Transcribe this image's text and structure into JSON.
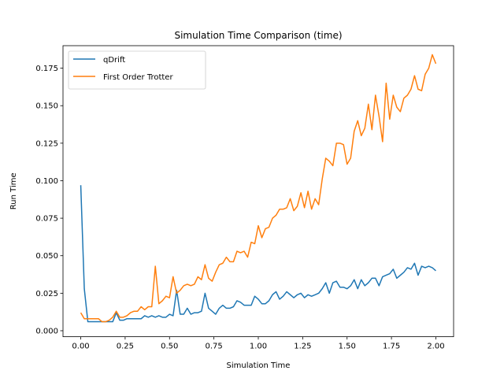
{
  "chart_data": {
    "type": "line",
    "title": "Simulation Time Comparison (time)",
    "xlabel": "Simulation Time",
    "ylabel": "Run Time",
    "xlim": [
      -0.1,
      2.1
    ],
    "ylim": [
      -0.004,
      0.19
    ],
    "xticks": [
      0.0,
      0.25,
      0.5,
      0.75,
      1.0,
      1.25,
      1.5,
      1.75,
      2.0
    ],
    "xtick_labels": [
      "0.00",
      "0.25",
      "0.50",
      "0.75",
      "1.00",
      "1.25",
      "1.50",
      "1.75",
      "2.00"
    ],
    "yticks": [
      0.0,
      0.025,
      0.05,
      0.075,
      0.1,
      0.125,
      0.15,
      0.175
    ],
    "ytick_labels": [
      "0.000",
      "0.025",
      "0.050",
      "0.075",
      "0.100",
      "0.125",
      "0.150",
      "0.175"
    ],
    "grid": false,
    "legend_position": "top-left",
    "x": [
      0.0,
      0.02,
      0.04,
      0.06,
      0.08,
      0.1,
      0.12,
      0.14,
      0.16,
      0.18,
      0.2,
      0.22,
      0.24,
      0.26,
      0.28,
      0.3,
      0.32,
      0.34,
      0.36,
      0.38,
      0.4,
      0.42,
      0.44,
      0.46,
      0.48,
      0.5,
      0.52,
      0.54,
      0.56,
      0.58,
      0.6,
      0.62,
      0.64,
      0.66,
      0.68,
      0.7,
      0.72,
      0.74,
      0.76,
      0.78,
      0.8,
      0.82,
      0.84,
      0.86,
      0.88,
      0.9,
      0.92,
      0.94,
      0.96,
      0.98,
      1.0,
      1.02,
      1.04,
      1.06,
      1.08,
      1.1,
      1.12,
      1.14,
      1.16,
      1.18,
      1.2,
      1.22,
      1.24,
      1.26,
      1.28,
      1.3,
      1.32,
      1.34,
      1.36,
      1.38,
      1.4,
      1.42,
      1.44,
      1.46,
      1.48,
      1.5,
      1.52,
      1.54,
      1.56,
      1.58,
      1.6,
      1.62,
      1.64,
      1.66,
      1.68,
      1.7,
      1.72,
      1.74,
      1.76,
      1.78,
      1.8,
      1.82,
      1.84,
      1.86,
      1.88,
      1.9,
      1.92,
      1.94,
      1.96,
      1.98,
      2.0
    ],
    "series": [
      {
        "name": "qDrift",
        "color": "#1f77b4",
        "values": [
          0.097,
          0.028,
          0.006,
          0.006,
          0.006,
          0.006,
          0.006,
          0.006,
          0.006,
          0.006,
          0.012,
          0.007,
          0.007,
          0.008,
          0.008,
          0.008,
          0.008,
          0.008,
          0.01,
          0.009,
          0.01,
          0.009,
          0.01,
          0.009,
          0.009,
          0.011,
          0.01,
          0.027,
          0.011,
          0.011,
          0.015,
          0.011,
          0.012,
          0.012,
          0.013,
          0.025,
          0.015,
          0.013,
          0.011,
          0.015,
          0.017,
          0.015,
          0.015,
          0.016,
          0.02,
          0.019,
          0.017,
          0.017,
          0.017,
          0.023,
          0.021,
          0.018,
          0.018,
          0.02,
          0.024,
          0.026,
          0.021,
          0.023,
          0.026,
          0.024,
          0.022,
          0.024,
          0.025,
          0.022,
          0.024,
          0.023,
          0.024,
          0.025,
          0.028,
          0.032,
          0.025,
          0.032,
          0.033,
          0.029,
          0.029,
          0.028,
          0.03,
          0.034,
          0.028,
          0.034,
          0.03,
          0.032,
          0.035,
          0.035,
          0.03,
          0.036,
          0.037,
          0.038,
          0.041,
          0.035,
          0.037,
          0.039,
          0.042,
          0.041,
          0.045,
          0.037,
          0.043,
          0.042,
          0.043,
          0.042,
          0.04
        ]
      },
      {
        "name": "First Order Trotter",
        "color": "#ff7f0e",
        "values": [
          0.012,
          0.008,
          0.008,
          0.008,
          0.008,
          0.008,
          0.006,
          0.006,
          0.007,
          0.009,
          0.013,
          0.009,
          0.009,
          0.01,
          0.012,
          0.013,
          0.013,
          0.016,
          0.014,
          0.016,
          0.016,
          0.043,
          0.018,
          0.02,
          0.023,
          0.022,
          0.036,
          0.025,
          0.027,
          0.03,
          0.031,
          0.03,
          0.031,
          0.036,
          0.034,
          0.044,
          0.035,
          0.033,
          0.039,
          0.044,
          0.045,
          0.049,
          0.046,
          0.046,
          0.053,
          0.052,
          0.053,
          0.049,
          0.059,
          0.058,
          0.07,
          0.062,
          0.068,
          0.069,
          0.075,
          0.077,
          0.081,
          0.081,
          0.082,
          0.088,
          0.08,
          0.083,
          0.092,
          0.082,
          0.093,
          0.081,
          0.088,
          0.084,
          0.101,
          0.115,
          0.113,
          0.11,
          0.125,
          0.125,
          0.124,
          0.111,
          0.115,
          0.133,
          0.14,
          0.13,
          0.135,
          0.151,
          0.134,
          0.157,
          0.143,
          0.126,
          0.165,
          0.141,
          0.157,
          0.149,
          0.146,
          0.155,
          0.157,
          0.161,
          0.17,
          0.161,
          0.16,
          0.171,
          0.175,
          0.184,
          0.178
        ]
      }
    ]
  }
}
